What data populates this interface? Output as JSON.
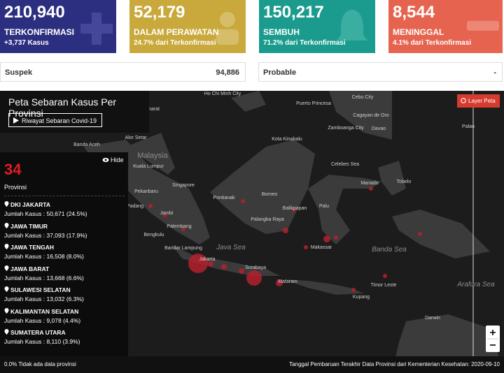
{
  "cards": [
    {
      "value": "210,940",
      "label": "TERKONFIRMASI",
      "sub": "+3,737 Kasus"
    },
    {
      "value": "52,179",
      "label": "DALAM PERAWATAN",
      "sub": "24.7% dari Terkonfirmasi"
    },
    {
      "value": "150,217",
      "label": "SEMBUH",
      "sub": "71.2% dari Terkonfirmasi"
    },
    {
      "value": "8,544",
      "label": "MENINGGAL",
      "sub": "4.1% dari Terkonfirmasi"
    }
  ],
  "stats": [
    {
      "label": "Suspek",
      "value": "94,886"
    },
    {
      "label": "Probable",
      "value": "-"
    }
  ],
  "map": {
    "title": "Peta Sebaran Kasus Per Provinsi",
    "history_button": "Riwayat Sebaran Covid-19",
    "layer_button": "Layer Peta",
    "hide_button": "Hide",
    "province_count": "34",
    "province_label": "Provinsi",
    "provinces": [
      {
        "name": "DKI JAKARTA",
        "cases": "Jumlah Kasus : 50,671 (24.5%)"
      },
      {
        "name": "JAWA TIMUR",
        "cases": "Jumlah Kasus : 37,093 (17.9%)"
      },
      {
        "name": "JAWA TENGAH",
        "cases": "Jumlah Kasus : 16,508 (8.0%)"
      },
      {
        "name": "JAWA BARAT",
        "cases": "Jumlah Kasus : 13,668 (6.6%)"
      },
      {
        "name": "SULAWESI SELATAN",
        "cases": "Jumlah Kasus : 13,032 (6.3%)"
      },
      {
        "name": "KALIMANTAN SELATAN",
        "cases": "Jumlah Kasus : 9,078 (4.4%)"
      },
      {
        "name": "SUMATERA UTARA",
        "cases": "Jumlah Kasus : 8,110 (3.9%)"
      }
    ],
    "places": [
      "Ho Chi Minh City",
      "Puerto Princesa",
      "Cebu City",
      "Cagayan de Oro",
      "Davao",
      "Zamboanga City",
      "Palau",
      "Nakhon Si Thammarat",
      "Banda Aceh",
      "Alor Setar",
      "Malaysia",
      "Kuala Lumpur",
      "Kota Kinabalu",
      "Singapore",
      "Pekanbaru",
      "Padang",
      "Jambi",
      "Pontianak",
      "Borneo",
      "Manado",
      "Tobelo",
      "Palembang",
      "Bengkulu",
      "Balikpapan",
      "Palu",
      "Palangka Raya",
      "Bandar Lampung",
      "Jakarta",
      "Java Sea",
      "Makassar",
      "Banda Sea",
      "Surabaya",
      "Mataram",
      "Timor Leste",
      "Kupang",
      "Arafura Sea",
      "Darwin",
      "Celebes Sea"
    ]
  },
  "footer": {
    "left": "0.0% Tidak ada data provinsi",
    "right": "Tanggal Pembaruan Terakhir Data Provinsi dari Kementerian Kesehatan: 2020-09-10"
  }
}
